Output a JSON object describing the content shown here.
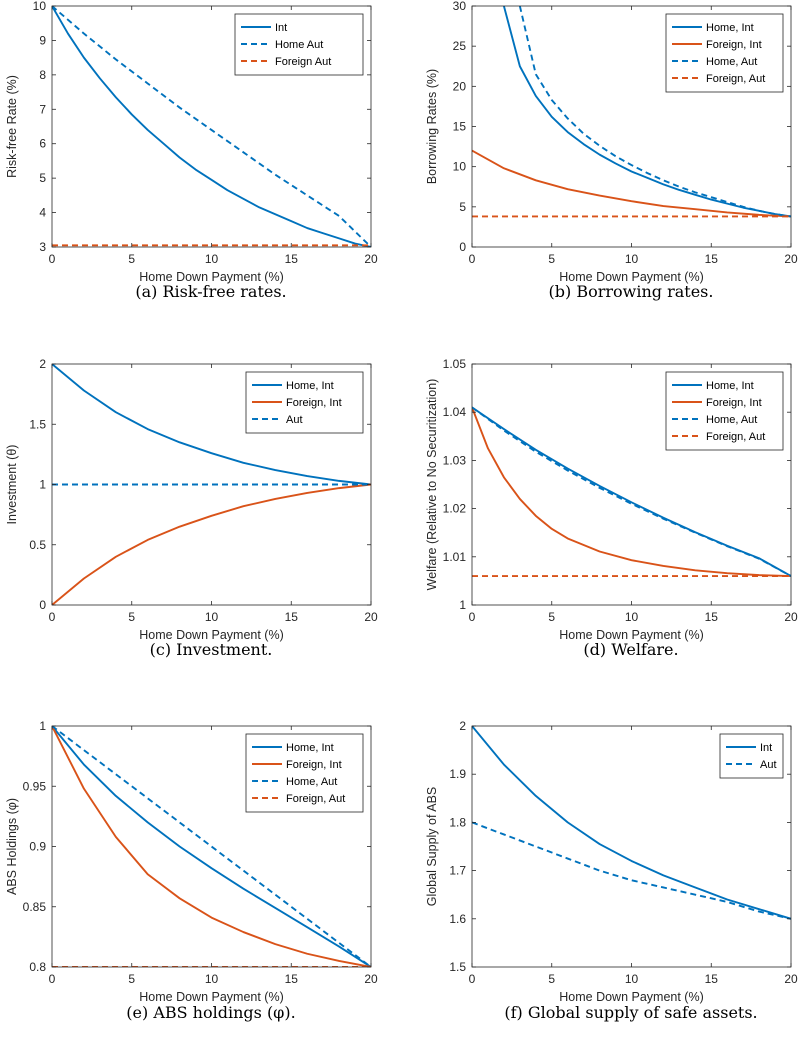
{
  "chart_data": [
    {
      "type": "line",
      "caption": "(a) Risk-free rates.",
      "xlabel": "Home Down Payment (%)",
      "ylabel": "Risk-free Rate (%)",
      "xlim": [
        0,
        20
      ],
      "ylim": [
        3,
        10
      ],
      "xticks": [
        0,
        5,
        10,
        15,
        20
      ],
      "yticks": [
        3,
        4,
        5,
        6,
        7,
        8,
        9,
        10
      ],
      "legend_position": "top-right",
      "series": [
        {
          "name": "Int",
          "color": "#0072BD",
          "dash": "solid",
          "x": [
            0,
            1,
            2,
            3,
            4,
            5,
            6,
            7,
            8,
            9,
            10,
            11,
            12,
            13,
            14,
            15,
            16,
            17,
            18,
            19,
            20
          ],
          "y": [
            10,
            9.2,
            8.5,
            7.9,
            7.35,
            6.85,
            6.4,
            6.0,
            5.6,
            5.25,
            4.95,
            4.65,
            4.4,
            4.15,
            3.95,
            3.75,
            3.55,
            3.4,
            3.25,
            3.1,
            3.0
          ]
        },
        {
          "name": "Home Aut",
          "color": "#0072BD",
          "dash": "dashed",
          "x": [
            0,
            2,
            4,
            6,
            8,
            10,
            12,
            14,
            16,
            18,
            20
          ],
          "y": [
            10,
            9.2,
            8.45,
            7.75,
            7.05,
            6.4,
            5.75,
            5.1,
            4.5,
            3.9,
            3.0
          ]
        },
        {
          "name": "Foreign Aut",
          "color": "#D95319",
          "dash": "dashed",
          "x": [
            0,
            20
          ],
          "y": [
            3.05,
            3.05
          ]
        }
      ]
    },
    {
      "type": "line",
      "caption": "(b) Borrowing rates.",
      "xlabel": "Home Down Payment (%)",
      "ylabel": "Borrowing Rates (%)",
      "xlim": [
        0,
        20
      ],
      "ylim": [
        0,
        30
      ],
      "xticks": [
        0,
        5,
        10,
        15,
        20
      ],
      "yticks": [
        0,
        5,
        10,
        15,
        20,
        25,
        30
      ],
      "legend_position": "top-right",
      "series": [
        {
          "name": "Home, Int",
          "color": "#0072BD",
          "dash": "solid",
          "x": [
            2,
            3,
            4,
            5,
            6,
            7,
            8,
            9,
            10,
            11,
            12,
            13,
            14,
            15,
            16,
            17,
            18,
            19,
            20
          ],
          "y": [
            30,
            22.5,
            18.8,
            16.2,
            14.3,
            12.8,
            11.5,
            10.4,
            9.4,
            8.6,
            7.8,
            7.1,
            6.5,
            5.9,
            5.4,
            4.9,
            4.5,
            4.1,
            3.8
          ]
        },
        {
          "name": "Foreign, Int",
          "color": "#D95319",
          "dash": "solid",
          "x": [
            0,
            2,
            4,
            6,
            8,
            10,
            12,
            14,
            16,
            18,
            20
          ],
          "y": [
            12,
            9.8,
            8.3,
            7.2,
            6.4,
            5.7,
            5.1,
            4.7,
            4.3,
            4.0,
            3.8
          ]
        },
        {
          "name": "Home, Aut",
          "color": "#0072BD",
          "dash": "dashed",
          "x": [
            3,
            4,
            5,
            6,
            7,
            8,
            9,
            10,
            11,
            12,
            13,
            14,
            15,
            16,
            17,
            18,
            19,
            20
          ],
          "y": [
            30,
            21.5,
            18.3,
            16.0,
            14.1,
            12.6,
            11.3,
            10.2,
            9.2,
            8.3,
            7.5,
            6.8,
            6.2,
            5.6,
            5.0,
            4.5,
            4.1,
            3.8
          ]
        },
        {
          "name": "Foreign, Aut",
          "color": "#D95319",
          "dash": "dashed",
          "x": [
            0,
            20
          ],
          "y": [
            3.8,
            3.8
          ]
        }
      ]
    },
    {
      "type": "line",
      "caption": "(c) Investment.",
      "xlabel": "Home Down Payment (%)",
      "ylabel": "Investment (θ)",
      "xlim": [
        0,
        20
      ],
      "ylim": [
        0,
        2
      ],
      "xticks": [
        0,
        5,
        10,
        15,
        20
      ],
      "yticks": [
        0,
        0.5,
        1,
        1.5,
        2
      ],
      "legend_position": "top-right",
      "series": [
        {
          "name": "Home, Int",
          "color": "#0072BD",
          "dash": "solid",
          "x": [
            0,
            2,
            4,
            6,
            8,
            10,
            12,
            14,
            16,
            18,
            20
          ],
          "y": [
            2.0,
            1.78,
            1.6,
            1.46,
            1.35,
            1.26,
            1.18,
            1.12,
            1.07,
            1.03,
            1.0
          ]
        },
        {
          "name": "Foreign, Int",
          "color": "#D95319",
          "dash": "solid",
          "x": [
            0,
            2,
            4,
            6,
            8,
            10,
            12,
            14,
            16,
            18,
            20
          ],
          "y": [
            0.0,
            0.22,
            0.4,
            0.54,
            0.65,
            0.74,
            0.82,
            0.88,
            0.93,
            0.97,
            1.0
          ]
        },
        {
          "name": "Aut",
          "color": "#0072BD",
          "dash": "dashed",
          "x": [
            0,
            20
          ],
          "y": [
            1.0,
            1.0
          ]
        }
      ]
    },
    {
      "type": "line",
      "caption": "(d) Welfare.",
      "xlabel": "Home Down Payment (%)",
      "ylabel": "Welfare (Relative to No Securitization)",
      "xlim": [
        0,
        20
      ],
      "ylim": [
        1,
        1.05
      ],
      "xticks": [
        0,
        5,
        10,
        15,
        20
      ],
      "yticks": [
        1,
        1.01,
        1.02,
        1.03,
        1.04,
        1.05
      ],
      "yticklabels": [
        "1",
        "1.01",
        "1.02",
        "1.03",
        "1.04",
        "1.05"
      ],
      "legend_position": "top-right",
      "series": [
        {
          "name": "Home, Int",
          "color": "#0072BD",
          "dash": "solid",
          "x": [
            0,
            2,
            4,
            6,
            8,
            10,
            12,
            14,
            16,
            18,
            20
          ],
          "y": [
            1.041,
            1.0365,
            1.0322,
            1.0283,
            1.0247,
            1.0213,
            1.0181,
            1.0151,
            1.0123,
            1.0097,
            1.006
          ]
        },
        {
          "name": "Foreign, Int",
          "color": "#D95319",
          "dash": "solid",
          "x": [
            0,
            1,
            2,
            3,
            4,
            5,
            6,
            8,
            10,
            12,
            14,
            16,
            18,
            20
          ],
          "y": [
            1.041,
            1.0325,
            1.0265,
            1.022,
            1.0185,
            1.0158,
            1.0138,
            1.0111,
            1.0093,
            1.0081,
            1.0072,
            1.0066,
            1.0062,
            1.006
          ]
        },
        {
          "name": "Home, Aut",
          "color": "#0072BD",
          "dash": "dashed",
          "x": [
            0,
            2,
            4,
            6,
            8,
            10,
            12,
            14,
            16,
            18,
            20
          ],
          "y": [
            1.041,
            1.0362,
            1.0318,
            1.0279,
            1.0243,
            1.021,
            1.0179,
            1.015,
            1.0122,
            1.0096,
            1.006
          ]
        },
        {
          "name": "Foreign, Aut",
          "color": "#D95319",
          "dash": "dashed",
          "x": [
            0,
            20
          ],
          "y": [
            1.006,
            1.006
          ]
        }
      ]
    },
    {
      "type": "line",
      "caption": "(e) ABS holdings (φ).",
      "xlabel": "Home Down Payment (%)",
      "ylabel": "ABS Holdings (φ)",
      "xlim": [
        0,
        20
      ],
      "ylim": [
        0.8,
        1
      ],
      "xticks": [
        0,
        5,
        10,
        15,
        20
      ],
      "yticks": [
        0.8,
        0.85,
        0.9,
        0.95,
        1
      ],
      "legend_position": "top-right",
      "series": [
        {
          "name": "Home, Int",
          "color": "#0072BD",
          "dash": "solid",
          "x": [
            0,
            2,
            4,
            6,
            8,
            10,
            12,
            14,
            16,
            18,
            20
          ],
          "y": [
            1.0,
            0.968,
            0.942,
            0.92,
            0.9,
            0.882,
            0.865,
            0.849,
            0.833,
            0.817,
            0.8
          ]
        },
        {
          "name": "Foreign, Int",
          "color": "#D95319",
          "dash": "solid",
          "x": [
            0,
            2,
            4,
            6,
            8,
            10,
            12,
            14,
            16,
            18,
            20
          ],
          "y": [
            1.0,
            0.948,
            0.908,
            0.877,
            0.857,
            0.841,
            0.829,
            0.819,
            0.811,
            0.805,
            0.8
          ]
        },
        {
          "name": "Home, Aut",
          "color": "#0072BD",
          "dash": "dashed",
          "x": [
            0,
            2,
            4,
            6,
            8,
            10,
            12,
            14,
            16,
            18,
            20
          ],
          "y": [
            1.0,
            0.98,
            0.96,
            0.94,
            0.92,
            0.9,
            0.88,
            0.86,
            0.84,
            0.82,
            0.8
          ]
        },
        {
          "name": "Foreign, Aut",
          "color": "#D95319",
          "dash": "dashed",
          "x": [
            0,
            20
          ],
          "y": [
            0.8,
            0.8
          ]
        }
      ]
    },
    {
      "type": "line",
      "caption": "(f) Global supply of safe assets.",
      "xlabel": "Home Down Payment (%)",
      "ylabel": "Global Supply of ABS",
      "xlim": [
        0,
        20
      ],
      "ylim": [
        1.5,
        2
      ],
      "xticks": [
        0,
        5,
        10,
        15,
        20
      ],
      "yticks": [
        1.5,
        1.6,
        1.7,
        1.8,
        1.9,
        2
      ],
      "legend_position": "top-right",
      "series": [
        {
          "name": "Int",
          "color": "#0072BD",
          "dash": "solid",
          "x": [
            0,
            2,
            4,
            6,
            8,
            10,
            12,
            14,
            16,
            18,
            20
          ],
          "y": [
            2.0,
            1.92,
            1.855,
            1.8,
            1.755,
            1.72,
            1.69,
            1.665,
            1.64,
            1.62,
            1.6
          ]
        },
        {
          "name": "Aut",
          "color": "#0072BD",
          "dash": "dashed",
          "x": [
            0,
            2,
            4,
            6,
            8,
            10,
            12,
            14,
            16,
            18,
            20
          ],
          "y": [
            1.8,
            1.775,
            1.75,
            1.725,
            1.7,
            1.68,
            1.665,
            1.65,
            1.635,
            1.615,
            1.6
          ]
        }
      ]
    }
  ]
}
